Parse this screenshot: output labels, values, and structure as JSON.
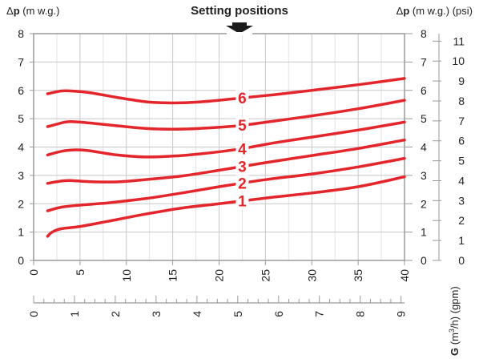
{
  "chart_data": {
    "type": "line",
    "title": "Setting positions",
    "left_axis_label": {
      "prefix": "Δ",
      "bold": "p",
      "unit": " (m w.g.)"
    },
    "right_axis_label": {
      "prefix": "Δ",
      "bold": "p",
      "unit": " (m w.g.) (psi)"
    },
    "x_axis_label": {
      "bold": "G",
      "unit": " (m",
      "sup": "3",
      "rest": "/h) (gpm)"
    },
    "xlim": [
      0,
      40
    ],
    "ylim": [
      0,
      8
    ],
    "x_ticks": [
      "0",
      "5",
      "10",
      "15",
      "20",
      "25",
      "30",
      "35",
      "40"
    ],
    "y_ticks": [
      "0",
      "1",
      "2",
      "3",
      "4",
      "5",
      "6",
      "7",
      "8"
    ],
    "psi_ticks": [
      "0",
      "1",
      "2",
      "3",
      "4",
      "5",
      "6",
      "7",
      "8",
      "9",
      "10",
      "11"
    ],
    "gpm_ticks": [
      "0",
      "1",
      "2",
      "3",
      "4",
      "5",
      "6",
      "7",
      "8",
      "9"
    ],
    "grid": true,
    "line_color": "#e3262b",
    "label_color": "#e3262b",
    "series": [
      {
        "name": "1",
        "label_x": 22.5,
        "x": [
          1.5,
          2,
          3,
          5,
          8,
          12,
          16,
          20,
          25,
          30,
          35,
          40
        ],
        "y": [
          0.85,
          1.0,
          1.12,
          1.2,
          1.38,
          1.63,
          1.85,
          2.0,
          2.2,
          2.38,
          2.6,
          2.95
        ]
      },
      {
        "name": "2",
        "label_x": 22.5,
        "x": [
          1.5,
          3,
          5,
          8,
          12,
          16,
          20,
          25,
          30,
          35,
          40
        ],
        "y": [
          1.75,
          1.88,
          1.95,
          2.03,
          2.18,
          2.38,
          2.6,
          2.85,
          3.05,
          3.3,
          3.6
        ]
      },
      {
        "name": "3",
        "label_x": 22.5,
        "x": [
          1.5,
          3,
          4,
          6,
          9,
          12,
          16,
          20,
          25,
          30,
          35,
          40
        ],
        "y": [
          2.72,
          2.8,
          2.82,
          2.78,
          2.77,
          2.85,
          2.98,
          3.18,
          3.45,
          3.7,
          3.95,
          4.25
        ]
      },
      {
        "name": "4",
        "label_x": 22.5,
        "x": [
          1.5,
          3,
          4.5,
          6,
          9,
          12,
          15,
          18,
          22,
          26,
          30,
          35,
          40
        ],
        "y": [
          3.72,
          3.85,
          3.9,
          3.87,
          3.72,
          3.65,
          3.68,
          3.76,
          3.92,
          4.15,
          4.35,
          4.6,
          4.88
        ]
      },
      {
        "name": "5",
        "label_x": 22.5,
        "x": [
          1.5,
          3,
          4,
          6,
          9,
          12,
          15,
          18,
          22,
          26,
          30,
          35,
          40
        ],
        "y": [
          4.72,
          4.85,
          4.9,
          4.85,
          4.75,
          4.66,
          4.63,
          4.66,
          4.75,
          4.92,
          5.1,
          5.35,
          5.65
        ]
      },
      {
        "name": "6",
        "label_x": 22.5,
        "x": [
          1.5,
          3,
          4,
          6,
          9,
          12,
          14,
          16,
          19,
          22,
          26,
          30,
          35,
          40
        ],
        "y": [
          5.88,
          5.98,
          5.98,
          5.92,
          5.75,
          5.6,
          5.56,
          5.56,
          5.62,
          5.72,
          5.85,
          6.0,
          6.2,
          6.42
        ]
      }
    ]
  }
}
